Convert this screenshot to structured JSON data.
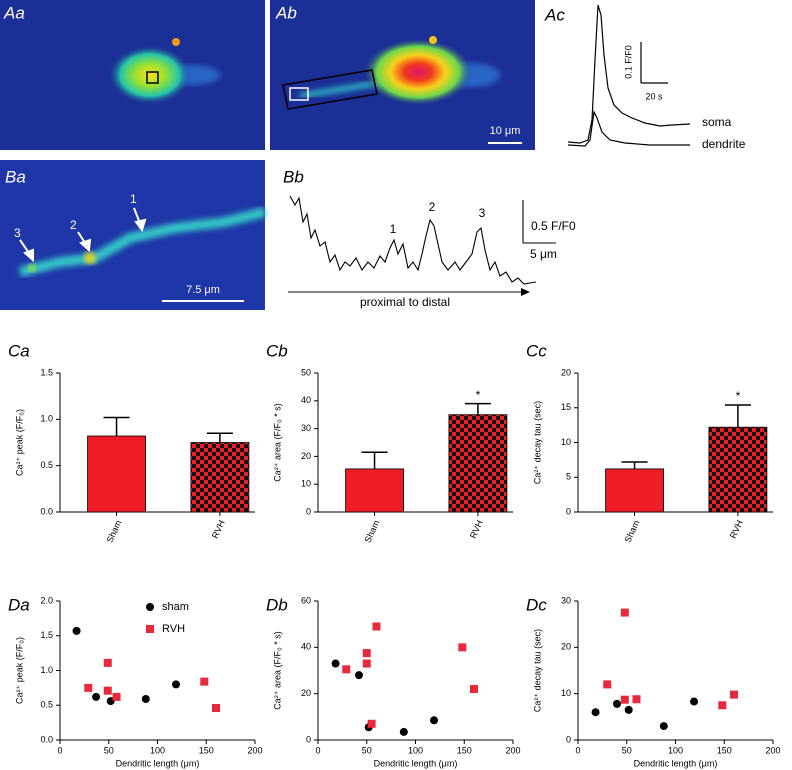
{
  "figure": {
    "panel_a": {
      "labels": [
        "Aa",
        "Ab",
        "Ac"
      ],
      "scale_bar": "10 μm",
      "trace_scale_y": "0.1 F/F0",
      "trace_scale_x": "20 s",
      "traces": [
        "soma",
        "dendrite"
      ]
    },
    "panel_b": {
      "labels": [
        "Ba",
        "Bb"
      ],
      "markers": [
        "1",
        "2",
        "3"
      ],
      "scale_bar": "7.5 μm",
      "scale_y": "0.5 F/F0",
      "scale_x": "5 μm",
      "axis_label": "proximal to distal"
    }
  },
  "chart_data": [
    {
      "type": "bar",
      "title": "Ca",
      "ylabel": "Ca²⁺ peak (F/F₀)",
      "categories": [
        "Sham",
        "RVH"
      ],
      "values": [
        0.82,
        0.75
      ],
      "errors": [
        0.2,
        0.1
      ],
      "colors": [
        "#ee1c25",
        "#ee1c25"
      ],
      "patterns": [
        "solid",
        "checker"
      ],
      "significance": [
        null,
        null
      ],
      "ylim": [
        0,
        1.5
      ],
      "yticks": [
        {
          "value": 0,
          "label": "0.0"
        },
        {
          "value": 0.5,
          "label": "0.5"
        },
        {
          "value": 1,
          "label": "1.0"
        },
        {
          "value": 1.5,
          "label": "1.5"
        }
      ]
    },
    {
      "type": "bar",
      "title": "Cb",
      "ylabel": "Ca²⁺ area (F/F₀ * s)",
      "categories": [
        "Sham",
        "RVH"
      ],
      "values": [
        15.5,
        35
      ],
      "errors": [
        6,
        4
      ],
      "colors": [
        "#ee1c25",
        "#ee1c25"
      ],
      "patterns": [
        "solid",
        "checker"
      ],
      "significance": [
        null,
        "*"
      ],
      "ylim": [
        0,
        50
      ],
      "yticks": [
        0,
        10,
        20,
        30,
        40,
        50
      ]
    },
    {
      "type": "bar",
      "title": "Cc",
      "ylabel": "Ca²⁺ decay tau (sec)",
      "categories": [
        "Sham",
        "RVH"
      ],
      "values": [
        6.2,
        12.2
      ],
      "errors": [
        1,
        3.2
      ],
      "colors": [
        "#ee1c25",
        "#ee1c25"
      ],
      "patterns": [
        "solid",
        "checker"
      ],
      "significance": [
        null,
        "*"
      ],
      "ylim": [
        0,
        20
      ],
      "yticks": [
        0,
        5,
        10,
        15,
        20
      ]
    },
    {
      "type": "scatter",
      "title": "Da",
      "xlabel": "Dendritic length (μm)",
      "ylabel": "Ca²⁺ peak (F/F₀)",
      "legend": "top",
      "xlim": [
        0,
        200
      ],
      "xticks": [
        0,
        50,
        100,
        150,
        200
      ],
      "ylim": [
        0,
        2
      ],
      "yticks": [
        {
          "value": 0,
          "label": "0.0"
        },
        {
          "value": 0.5,
          "label": "0.5"
        },
        {
          "value": 1,
          "label": "1.0"
        },
        {
          "value": 1.5,
          "label": "1.5"
        },
        {
          "value": 2,
          "label": "2.0"
        }
      ],
      "series": [
        {
          "name": "sham",
          "color": "#000000",
          "marker": "circle",
          "x": [
            17,
            37,
            52,
            88,
            119
          ],
          "values": [
            1.57,
            0.62,
            0.56,
            0.59,
            0.8
          ]
        },
        {
          "name": "RVH",
          "color": "#e8283c",
          "marker": "square",
          "x": [
            29,
            49,
            49,
            58,
            148,
            160
          ],
          "values": [
            0.75,
            0.71,
            1.11,
            0.62,
            0.84,
            0.46
          ]
        }
      ]
    },
    {
      "type": "scatter",
      "title": "Db",
      "xlabel": "Dendritic length (μm)",
      "ylabel": "Ca²⁺ area (F/F₀ * s)",
      "xlim": [
        0,
        200
      ],
      "xticks": [
        0,
        50,
        100,
        150,
        200
      ],
      "ylim": [
        0,
        60
      ],
      "yticks": [
        0,
        20,
        40,
        60
      ],
      "series": [
        {
          "color": "#000000",
          "marker": "circle",
          "x": [
            18,
            42,
            52,
            88,
            119
          ],
          "values": [
            33,
            28,
            5.5,
            3.5,
            8.5
          ]
        },
        {
          "color": "#e8283c",
          "marker": "square",
          "x": [
            29,
            50,
            50,
            55,
            60,
            148,
            160
          ],
          "values": [
            30.5,
            33,
            37.5,
            7,
            49,
            40,
            22
          ]
        }
      ]
    },
    {
      "type": "scatter",
      "title": "Dc",
      "xlabel": "Dendritic length (μm)",
      "ylabel": "Ca²⁺ decay tau (sec)",
      "xlim": [
        0,
        200
      ],
      "xticks": [
        0,
        50,
        100,
        150,
        200
      ],
      "ylim": [
        0,
        30
      ],
      "yticks": [
        0,
        10,
        20,
        30
      ],
      "series": [
        {
          "color": "#000000",
          "marker": "circle",
          "x": [
            18,
            40,
            52,
            88,
            119
          ],
          "values": [
            6,
            7.8,
            6.5,
            3,
            8.3
          ]
        },
        {
          "color": "#e8283c",
          "marker": "square",
          "x": [
            30,
            48,
            48,
            60,
            148,
            160
          ],
          "values": [
            12,
            8.7,
            27.5,
            8.8,
            7.5,
            9.8
          ]
        }
      ]
    }
  ]
}
